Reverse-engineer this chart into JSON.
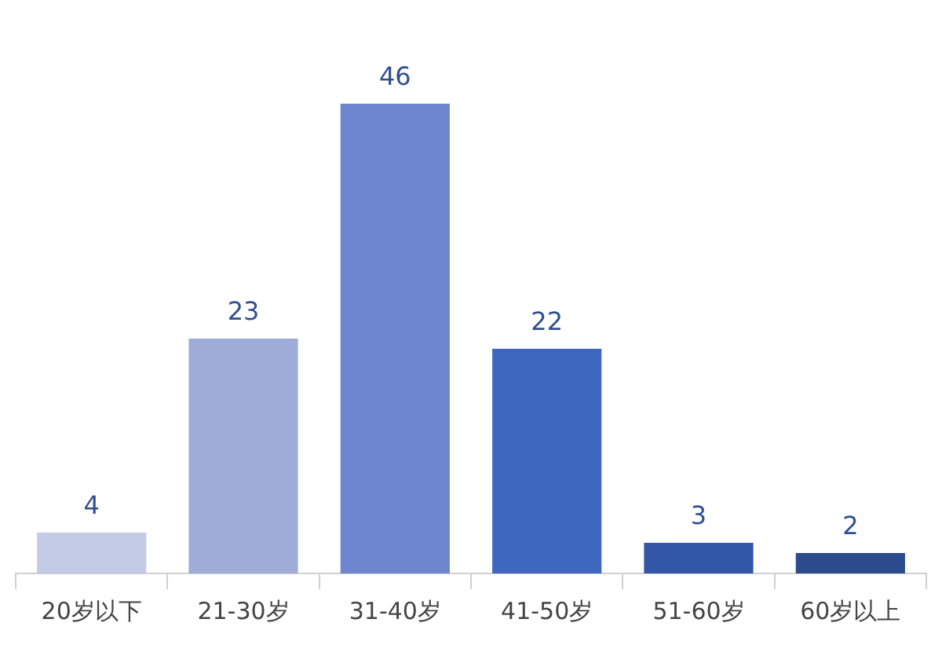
{
  "chart_data": {
    "type": "bar",
    "categories": [
      "20岁以下",
      "21-30岁",
      "31-40岁",
      "41-50岁",
      "51-60岁",
      "60岁以上"
    ],
    "values": [
      4,
      23,
      46,
      22,
      3,
      2
    ],
    "colors": [
      "#c3cbe6",
      "#9eacd7",
      "#6e86cd",
      "#3e67bf",
      "#3157a6",
      "#2c4b8c"
    ],
    "data_labels": true,
    "legend": false
  }
}
